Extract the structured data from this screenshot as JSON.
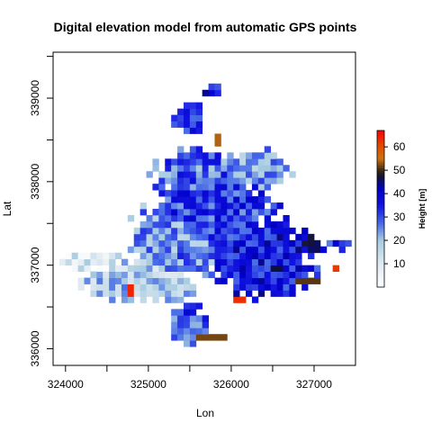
{
  "chart_data": {
    "type": "heatmap",
    "title": "Digital elevation model from automatic GPS points",
    "xlabel": "Lon",
    "ylabel": "Lat",
    "xlim": [
      323850,
      327500
    ],
    "ylim": [
      335800,
      339550
    ],
    "xticks": [
      324000,
      325000,
      326000,
      327000
    ],
    "xtick_labels": [
      "324000",
      "325000",
      "326000",
      "327000"
    ],
    "yticks": [
      336000,
      337000,
      338000,
      339000
    ],
    "ytick_labels": [
      "336000",
      "337000",
      "338000",
      "339000"
    ],
    "cell_size": 75,
    "grid": false,
    "legend": {
      "title": "Height [m]",
      "position": "right",
      "range": [
        0,
        67
      ],
      "ticks": [
        10,
        20,
        30,
        40,
        50,
        60
      ],
      "tick_labels": [
        "10",
        "20",
        "30",
        "40",
        "50",
        "60"
      ],
      "colormap": [
        {
          "value": 0,
          "color": "#ffffff"
        },
        {
          "value": 10,
          "color": "#e0eaf2"
        },
        {
          "value": 20,
          "color": "#a8cce0"
        },
        {
          "value": 27,
          "color": "#4a6ee8"
        },
        {
          "value": 35,
          "color": "#1212e0"
        },
        {
          "value": 42,
          "color": "#0000c8"
        },
        {
          "value": 47,
          "color": "#101040"
        },
        {
          "value": 50,
          "color": "#3a2810"
        },
        {
          "value": 55,
          "color": "#d07010"
        },
        {
          "value": 60,
          "color": "#e05000"
        },
        {
          "value": 67,
          "color": "#ff0000"
        }
      ]
    },
    "features": [
      {
        "x": 324300,
        "y": 337050,
        "rx": 480,
        "ry": 120,
        "h": 11
      },
      {
        "x": 324900,
        "y": 336800,
        "rx": 750,
        "ry": 300,
        "h": 18
      },
      {
        "x": 325350,
        "y": 337300,
        "rx": 650,
        "ry": 550,
        "h": 25
      },
      {
        "x": 325800,
        "y": 337600,
        "rx": 800,
        "ry": 650,
        "h": 32
      },
      {
        "x": 326400,
        "y": 337100,
        "rx": 700,
        "ry": 550,
        "h": 36
      },
      {
        "x": 325600,
        "y": 338100,
        "rx": 600,
        "ry": 320,
        "h": 28
      },
      {
        "x": 326350,
        "y": 338150,
        "rx": 450,
        "ry": 250,
        "h": 24
      },
      {
        "x": 325500,
        "y": 338750,
        "rx": 200,
        "ry": 250,
        "h": 34
      },
      {
        "x": 325750,
        "y": 339100,
        "rx": 120,
        "ry": 80,
        "h": 38
      },
      {
        "x": 326900,
        "y": 337250,
        "rx": 250,
        "ry": 130,
        "h": 40
      },
      {
        "x": 327300,
        "y": 337250,
        "rx": 150,
        "ry": 70,
        "h": 35
      },
      {
        "x": 325500,
        "y": 336300,
        "rx": 250,
        "ry": 250,
        "h": 30
      },
      {
        "x": 325850,
        "y": 338500,
        "rx": 70,
        "ry": 100,
        "h": 54
      },
      {
        "x": 325800,
        "y": 336150,
        "rx": 200,
        "ry": 60,
        "h": 52
      },
      {
        "x": 324780,
        "y": 336700,
        "rx": 50,
        "ry": 50,
        "h": 64
      },
      {
        "x": 326100,
        "y": 336600,
        "rx": 50,
        "ry": 50,
        "h": 63
      },
      {
        "x": 327250,
        "y": 336950,
        "rx": 70,
        "ry": 40,
        "h": 62
      },
      {
        "x": 326900,
        "y": 336800,
        "rx": 150,
        "ry": 50,
        "h": 51
      },
      {
        "x": 326550,
        "y": 336950,
        "rx": 60,
        "ry": 60,
        "h": 47
      }
    ]
  }
}
